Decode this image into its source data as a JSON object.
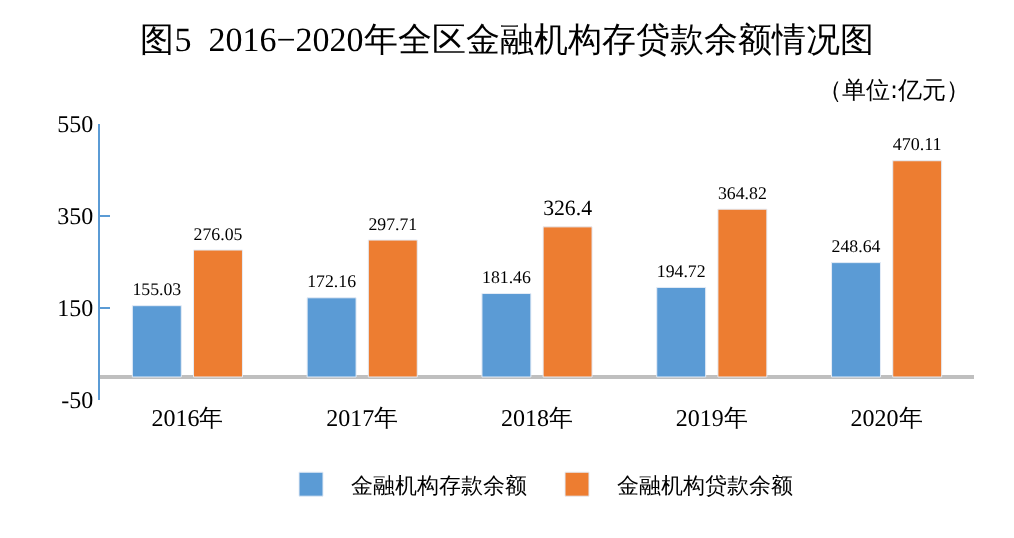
{
  "chart_data": {
    "type": "bar",
    "title": "图5  2016−2020年全区金融机构存贷款余额情况图",
    "annotations": [
      "（单位:亿元）"
    ],
    "categories": [
      "2016年",
      "2017年",
      "2018年",
      "2019年",
      "2020年"
    ],
    "series": [
      {
        "name": "金融机构存款余额",
        "color": "#5b9bd5",
        "values": [
          155.03,
          172.16,
          181.46,
          194.72,
          248.64
        ]
      },
      {
        "name": "金融机构贷款余额",
        "color": "#ed7d31",
        "values": [
          276.05,
          297.71,
          326.4,
          364.82,
          470.11
        ]
      }
    ],
    "ylim": [
      -50,
      550
    ],
    "yticks": [
      -50,
      150,
      350,
      550
    ],
    "grid": false,
    "legend": "bottom",
    "data_labels": true
  }
}
